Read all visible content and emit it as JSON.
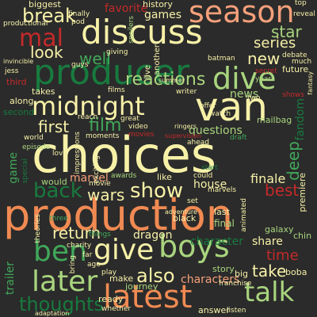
{
  "palette": {
    "background": "#2b2b2b",
    "cream": "#f7f1a8",
    "green_light": "#a9d57e",
    "green_mid": "#41a85a",
    "green_dark": "#187a3e",
    "orange": "#f08a52",
    "salmon": "#f4a07a",
    "red": "#c42a2a",
    "peach": "#f7c88a"
  },
  "words": [
    {
      "text": "choices",
      "color": "cream"
    },
    {
      "text": "production",
      "color": "orange"
    },
    {
      "text": "producer",
      "color": "green_dark"
    },
    {
      "text": "discuss",
      "color": "cream"
    },
    {
      "text": "season",
      "color": "salmon"
    },
    {
      "text": "midnight",
      "color": "cream"
    },
    {
      "text": "van",
      "color": "cream"
    },
    {
      "text": "dive",
      "color": "green_light"
    },
    {
      "text": "latest",
      "color": "orange"
    },
    {
      "text": "later",
      "color": "green_light"
    },
    {
      "text": "boys",
      "color": "green_light"
    },
    {
      "text": "give",
      "color": "cream"
    },
    {
      "text": "ben",
      "color": "green_mid"
    },
    {
      "text": "talk",
      "color": "green_light"
    },
    {
      "text": "show",
      "color": "cream"
    },
    {
      "text": "back",
      "color": "green_dark"
    },
    {
      "text": "break",
      "color": "cream"
    },
    {
      "text": "mal",
      "color": "red"
    },
    {
      "text": "reactions",
      "color": "green_light"
    },
    {
      "text": "film",
      "color": "green_mid"
    },
    {
      "text": "first",
      "color": "cream"
    },
    {
      "text": "look",
      "color": "cream"
    },
    {
      "text": "well",
      "color": "green_mid"
    },
    {
      "text": "new",
      "color": "cream"
    },
    {
      "text": "star",
      "color": "green_light"
    },
    {
      "text": "series",
      "color": "cream"
    },
    {
      "text": "thoughts",
      "color": "green_dark"
    },
    {
      "text": "also",
      "color": "cream"
    },
    {
      "text": "return",
      "color": "cream"
    },
    {
      "text": "wars",
      "color": "cream"
    },
    {
      "text": "best",
      "color": "red"
    },
    {
      "text": "deep",
      "color": "green_mid"
    },
    {
      "text": "finale",
      "color": "cream"
    },
    {
      "text": "take",
      "color": "cream"
    },
    {
      "text": "time",
      "color": "red"
    },
    {
      "text": "characters",
      "color": "salmon"
    },
    {
      "text": "dragon",
      "color": "cream"
    },
    {
      "text": "questions",
      "color": "green_light"
    },
    {
      "text": "marvel",
      "color": "salmon"
    },
    {
      "text": "favorite",
      "color": "red"
    },
    {
      "text": "games",
      "color": "cream"
    },
    {
      "text": "biggest",
      "color": "cream"
    },
    {
      "text": "history",
      "color": "cream"
    },
    {
      "text": "game",
      "color": "green_mid"
    },
    {
      "text": "house",
      "color": "cream"
    },
    {
      "text": "character",
      "color": "green_dark"
    },
    {
      "text": "share",
      "color": "cream"
    },
    {
      "text": "news",
      "color": "green_light"
    },
    {
      "text": "fandom",
      "color": "green_dark"
    },
    {
      "text": "mailbag",
      "color": "green_light"
    },
    {
      "text": "future",
      "color": "cream"
    },
    {
      "text": "along",
      "color": "cream"
    },
    {
      "text": "second",
      "color": "green_dark"
    },
    {
      "text": "would",
      "color": "green_light"
    },
    {
      "text": "like",
      "color": "cream"
    },
    {
      "text": "trailer",
      "color": "green_mid"
    },
    {
      "text": "story",
      "color": "green_light"
    },
    {
      "text": "premiere",
      "color": "cream"
    },
    {
      "text": "final",
      "color": "green_light"
    },
    {
      "text": "last",
      "color": "cream"
    },
    {
      "text": "black",
      "color": "cream"
    },
    {
      "text": "galaxy",
      "color": "green_light"
    },
    {
      "text": "chin",
      "color": "green_light"
    },
    {
      "text": "boba",
      "color": "cream"
    },
    {
      "text": "big",
      "color": "cream"
    },
    {
      "text": "answer",
      "color": "cream"
    },
    {
      "text": "make",
      "color": "cream"
    },
    {
      "text": "ready",
      "color": "cream"
    },
    {
      "text": "journey",
      "color": "green_light"
    },
    {
      "text": "third",
      "color": "red"
    },
    {
      "text": "takes",
      "color": "cream"
    },
    {
      "text": "episode",
      "color": "green_light"
    },
    {
      "text": "productional",
      "color": "cream"
    },
    {
      "text": "guys",
      "color": "cream"
    },
    {
      "text": "finally",
      "color": "cream"
    },
    {
      "text": "pod",
      "color": "cream"
    },
    {
      "text": "giving",
      "color": "cream"
    },
    {
      "text": "spoilers",
      "color": "green_light"
    },
    {
      "text": "live",
      "color": "cream"
    },
    {
      "text": "another",
      "color": "cream"
    },
    {
      "text": "top",
      "color": "cream"
    },
    {
      "text": "reveal",
      "color": "cream"
    },
    {
      "text": "debate",
      "color": "cream"
    },
    {
      "text": "much",
      "color": "cream"
    },
    {
      "text": "batman",
      "color": "cream"
    },
    {
      "text": "year",
      "color": "green_light"
    },
    {
      "text": "secret",
      "color": "red"
    },
    {
      "text": "shows",
      "color": "red"
    },
    {
      "text": "jess",
      "color": "cream"
    },
    {
      "text": "moments",
      "color": "cream"
    },
    {
      "text": "video",
      "color": "cream"
    },
    {
      "text": "movies",
      "color": "red"
    },
    {
      "text": "awards",
      "color": "green_light"
    },
    {
      "text": "draft",
      "color": "green_mid"
    },
    {
      "text": "start",
      "color": "green_dark"
    },
    {
      "text": "could",
      "color": "cream"
    },
    {
      "text": "ahead",
      "color": "cream"
    },
    {
      "text": "impressions",
      "color": "cream"
    },
    {
      "text": "world",
      "color": "cream"
    },
    {
      "text": "love",
      "color": "cream"
    },
    {
      "text": "special",
      "color": "green_dark"
    },
    {
      "text": "three",
      "color": "green_mid"
    },
    {
      "text": "charity",
      "color": "cream"
    },
    {
      "text": "things",
      "color": "green_mid"
    },
    {
      "text": "whether",
      "color": "cream"
    },
    {
      "text": "adaptation",
      "color": "cream"
    },
    {
      "text": "listen",
      "color": "cream"
    },
    {
      "text": "animated",
      "color": "cream"
    },
    {
      "text": "marvels",
      "color": "cream"
    },
    {
      "text": "movie",
      "color": "cream"
    },
    {
      "text": "bring",
      "color": "cream"
    },
    {
      "text": "adventure",
      "color": "cream"
    },
    {
      "text": "franchise",
      "color": "cream"
    },
    {
      "text": "play",
      "color": "cream"
    },
    {
      "text": "reach",
      "color": "cream"
    },
    {
      "text": "great",
      "color": "cream"
    },
    {
      "text": "films",
      "color": "cream"
    },
    {
      "text": "offer",
      "color": "cream"
    },
    {
      "text": "writer",
      "color": "cream"
    },
    {
      "text": "summer",
      "color": "cream"
    },
    {
      "text": "watch",
      "color": "cream"
    },
    {
      "text": "invincible",
      "color": "cream"
    },
    {
      "text": "theories",
      "color": "cream"
    },
    {
      "text": "exciting",
      "color": "cream"
    },
    {
      "text": "ringers",
      "color": "cream"
    },
    {
      "text": "supervision",
      "color": "red"
    },
    {
      "text": "fantasy",
      "color": "cream"
    },
    {
      "text": "two",
      "color": "cream"
    },
    {
      "text": "set",
      "color": "cream"
    },
    {
      "text": "far",
      "color": "cream"
    },
    {
      "text": "ago",
      "color": "cream"
    }
  ]
}
